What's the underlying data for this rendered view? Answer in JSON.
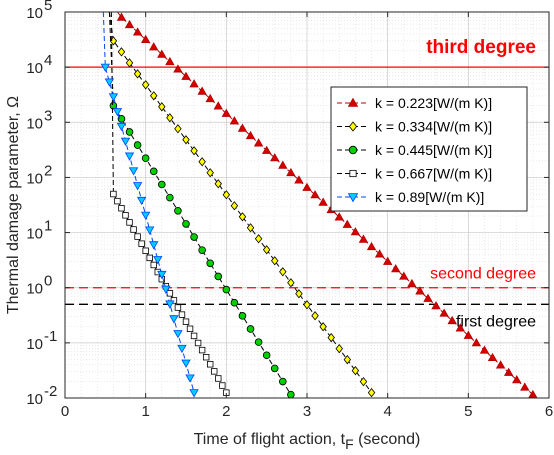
{
  "chart_data": {
    "type": "line",
    "yscale": "log",
    "xlim": [
      0,
      6
    ],
    "ylim": [
      0.01,
      100000
    ],
    "xticks": [
      "0",
      "1",
      "2",
      "3",
      "4",
      "5",
      "6"
    ],
    "yticks": [
      {
        "base": "10",
        "exp": "-2"
      },
      {
        "base": "10",
        "exp": "-1"
      },
      {
        "base": "10",
        "exp": "0"
      },
      {
        "base": "10",
        "exp": "1"
      },
      {
        "base": "10",
        "exp": "2"
      },
      {
        "base": "10",
        "exp": "3"
      },
      {
        "base": "10",
        "exp": "4"
      },
      {
        "base": "10",
        "exp": "5"
      }
    ],
    "xlabel": {
      "main": "Time of flight action, t",
      "sub": "F",
      "tail": " (second)"
    },
    "ylabel": "Thermal damage parameter, Ω",
    "grid": true,
    "legend_position": "upper-right",
    "thresholds": [
      {
        "label": "third degree",
        "y": 10000,
        "color": "#ff0000",
        "style": "solid"
      },
      {
        "label": "second degree",
        "y": 1,
        "color": "#ff0000",
        "style": "dashed"
      },
      {
        "label": "first degree",
        "y": 0.5,
        "color": "#000000",
        "style": "dashed"
      }
    ],
    "series": [
      {
        "name": "k = 0.223[W/(m K)]",
        "marker": "triangle-up",
        "color": "#b30000",
        "face": "#d40000",
        "x_start": 0.7,
        "x_end": 5.8,
        "step": 0.1,
        "y_start": 80000,
        "y_end": 0.0115
      },
      {
        "name": "k = 0.334[W/(m K)]",
        "marker": "diamond",
        "color": "#000000",
        "face": "#ffff00",
        "x_start": 0.6,
        "x_end": 3.8,
        "step": 0.1,
        "y_start": 30000,
        "y_end": 0.0125
      },
      {
        "name": "k = 0.445[W/(m K)]",
        "marker": "circle",
        "color": "#000000",
        "face": "#00d000",
        "x_start": 0.6,
        "x_end": 2.8,
        "step": 0.1,
        "y_start": 2000,
        "y_end": 0.0115
      },
      {
        "name": "k = 0.667[W/(m K)]",
        "marker": "square",
        "color": "#000000",
        "face": "#ffffff",
        "x_start": 0.6,
        "x_end": 2.0,
        "step": 0.05,
        "y_start": 50,
        "y_end": 0.0125
      },
      {
        "name": "k = 0.89[W/(m K)]",
        "marker": "triangle-down",
        "color": "#0044ff",
        "face": "#00ccff",
        "x_start": 0.5,
        "x_end": 1.6,
        "step": 0.05,
        "y_start": 10000,
        "y_end": 0.0125
      }
    ]
  }
}
